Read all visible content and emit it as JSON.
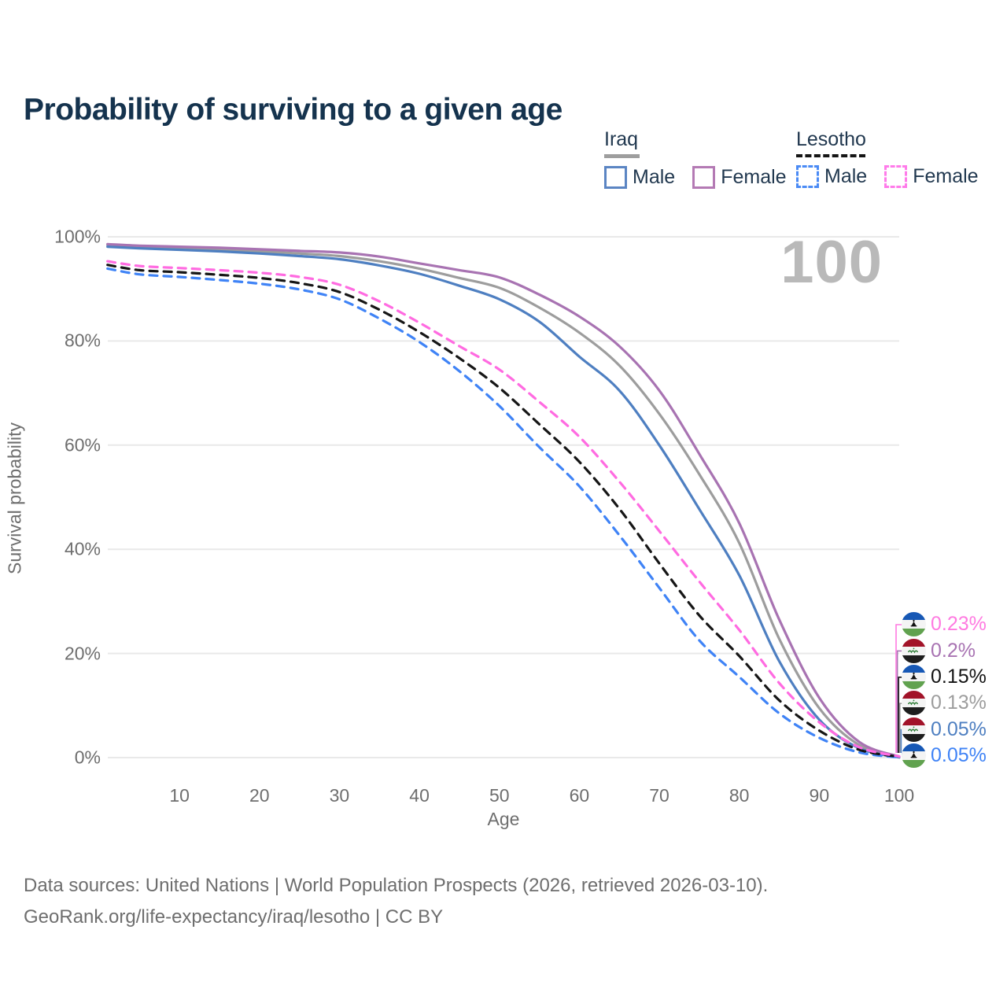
{
  "title": "Probability of surviving to a given age",
  "watermark_age": "100",
  "legend": {
    "iraq": {
      "country_label": "Iraq",
      "male_label": "Male",
      "female_label": "Female",
      "male_color": "#5b85c3",
      "female_color": "#b47ab4",
      "underline_color": "#9e9e9e"
    },
    "lesotho": {
      "country_label": "Lesotho",
      "male_label": "Male",
      "female_label": "Female",
      "male_color": "#4b8bf5",
      "female_color": "#ff7bea",
      "underline_color": "#151515"
    }
  },
  "end_labels": [
    {
      "flag": "lesotho",
      "series": "Lesotho Female",
      "value": "0.23%",
      "color": "#ff7ae1"
    },
    {
      "flag": "iraq",
      "series": "Iraq Female",
      "value": "0.2%",
      "color": "#a873b2"
    },
    {
      "flag": "lesotho",
      "series": "Lesotho",
      "value": "0.15%",
      "color": "#131313"
    },
    {
      "flag": "iraq",
      "series": "Iraq",
      "value": "0.13%",
      "color": "#9d9d9d"
    },
    {
      "flag": "iraq",
      "series": "Iraq Male",
      "value": "0.05%",
      "color": "#4e7fc1"
    },
    {
      "flag": "lesotho",
      "series": "Lesotho Male",
      "value": "0.05%",
      "color": "#3f83f6"
    }
  ],
  "footer": {
    "line1": "Data sources: United Nations | World Population Prospects (2026, retrieved 2026-03-10).",
    "line2": "GeoRank.org/life-expectancy/iraq/lesotho | CC BY"
  },
  "chart_data": {
    "type": "line",
    "title": "Probability of surviving to a given age",
    "xlabel": "Age",
    "ylabel": "Survival probability",
    "xlim": [
      0,
      100
    ],
    "ylim": [
      0,
      100
    ],
    "grid": "horizontal",
    "legend_position": "top-right",
    "x_ticks": [
      {
        "value": 10,
        "label": "10"
      },
      {
        "value": 20,
        "label": "20"
      },
      {
        "value": 30,
        "label": "30"
      },
      {
        "value": 40,
        "label": "40"
      },
      {
        "value": 50,
        "label": "50"
      },
      {
        "value": 60,
        "label": "60"
      },
      {
        "value": 70,
        "label": "70"
      },
      {
        "value": 80,
        "label": "80"
      },
      {
        "value": 90,
        "label": "90"
      },
      {
        "value": 100,
        "label": "100"
      }
    ],
    "y_ticks": [
      {
        "value": 100,
        "label": "100%"
      },
      {
        "value": 80,
        "label": "80%"
      },
      {
        "value": 60,
        "label": "60%"
      },
      {
        "value": 40,
        "label": "40%"
      },
      {
        "value": 20,
        "label": "20%"
      },
      {
        "value": 0,
        "label": "0%"
      }
    ],
    "ages": [
      1,
      5,
      10,
      15,
      20,
      25,
      30,
      35,
      40,
      45,
      50,
      55,
      60,
      65,
      70,
      75,
      80,
      85,
      90,
      95,
      100
    ],
    "series": [
      {
        "name": "Iraq",
        "country": "Iraq",
        "sex": "Both",
        "style": "solid",
        "color": "#9d9d9d",
        "end_value_percent": 0.13,
        "values": [
          98.4,
          98.0,
          97.8,
          97.5,
          97.2,
          96.8,
          96.3,
          95.3,
          93.9,
          92.1,
          90.2,
          86.4,
          81.6,
          75.3,
          66.0,
          54.4,
          41.2,
          22.8,
          9.5,
          2.4,
          0.13
        ]
      },
      {
        "name": "Iraq Male",
        "country": "Iraq",
        "sex": "Male",
        "style": "solid",
        "color": "#4e7fc1",
        "end_value_percent": 0.05,
        "values": [
          98.1,
          97.8,
          97.5,
          97.2,
          96.8,
          96.3,
          95.7,
          94.5,
          92.9,
          90.6,
          88.0,
          83.7,
          77.0,
          70.5,
          60.0,
          47.7,
          35.0,
          18.5,
          7.3,
          1.8,
          0.05
        ]
      },
      {
        "name": "Iraq Female",
        "country": "Iraq",
        "sex": "Female",
        "style": "solid",
        "color": "#a873b2",
        "end_value_percent": 0.2,
        "values": [
          98.6,
          98.3,
          98.1,
          97.9,
          97.6,
          97.3,
          97.0,
          96.2,
          94.9,
          93.6,
          92.2,
          88.9,
          84.7,
          79.0,
          70.5,
          58.3,
          45.0,
          26.5,
          11.5,
          3.0,
          0.2
        ]
      },
      {
        "name": "Lesotho Male",
        "country": "Lesotho",
        "sex": "Male",
        "style": "dashed",
        "color": "#3f83f6",
        "end_value_percent": 0.05,
        "values": [
          93.9,
          92.8,
          92.3,
          91.7,
          91.0,
          89.9,
          88.0,
          84.3,
          79.8,
          74.2,
          67.5,
          59.6,
          52.1,
          42.7,
          32.6,
          22.5,
          15.5,
          8.5,
          3.8,
          1.0,
          0.05
        ]
      },
      {
        "name": "Lesotho",
        "country": "Lesotho",
        "sex": "Both",
        "style": "dashed",
        "color": "#161616",
        "end_value_percent": 0.15,
        "values": [
          94.6,
          93.6,
          93.2,
          92.7,
          92.1,
          91.1,
          89.4,
          86.0,
          81.7,
          76.7,
          71.0,
          64.0,
          56.8,
          47.8,
          37.3,
          27.3,
          19.5,
          11.0,
          5.2,
          1.5,
          0.15
        ]
      },
      {
        "name": "Lesotho Female",
        "country": "Lesotho",
        "sex": "Female",
        "style": "dashed",
        "color": "#ff6be1",
        "end_value_percent": 0.23,
        "values": [
          95.3,
          94.4,
          94.0,
          93.6,
          93.1,
          92.3,
          90.8,
          87.6,
          83.5,
          79.0,
          74.5,
          68.3,
          61.6,
          53.0,
          43.5,
          33.8,
          24.5,
          14.3,
          6.8,
          2.0,
          0.23
        ]
      }
    ]
  }
}
